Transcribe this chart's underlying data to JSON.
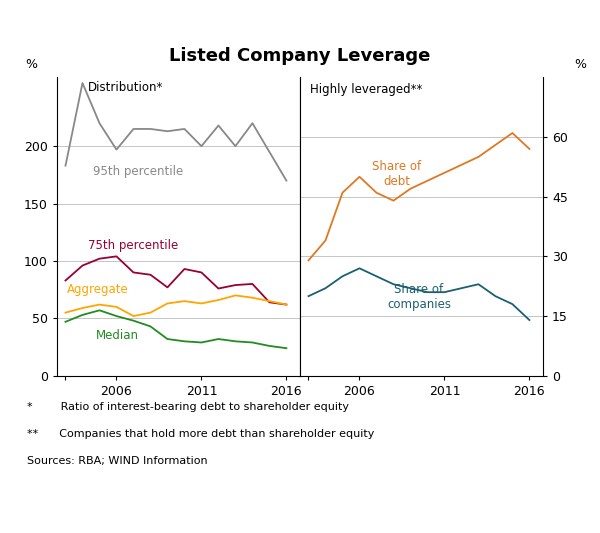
{
  "title": "Listed Company Leverage",
  "left_panel_label": "Distribution*",
  "right_panel_label": "Highly leveraged**",
  "left_ylabel": "%",
  "right_ylabel": "%",
  "left_ylim": [
    0,
    260
  ],
  "right_ylim": [
    0,
    75
  ],
  "left_yticks": [
    0,
    50,
    100,
    150,
    200
  ],
  "right_yticks": [
    0,
    15,
    30,
    45,
    60
  ],
  "footnote1": "*        Ratio of interest-bearing debt to shareholder equity",
  "footnote2": "**      Companies that hold more debt than shareholder equity",
  "footnote3": "Sources: RBA; WIND Information",
  "p95_years": [
    2003,
    2004,
    2005,
    2006,
    2007,
    2008,
    2009,
    2010,
    2011,
    2012,
    2013,
    2014,
    2015,
    2016
  ],
  "p95_vals": [
    183,
    255,
    220,
    197,
    215,
    215,
    213,
    215,
    200,
    218,
    200,
    220,
    195,
    170
  ],
  "p95_color": "#888888",
  "p75_years": [
    2003,
    2004,
    2005,
    2006,
    2007,
    2008,
    2009,
    2010,
    2011,
    2012,
    2013,
    2014,
    2015,
    2016
  ],
  "p75_vals": [
    83,
    96,
    102,
    104,
    90,
    88,
    77,
    93,
    90,
    76,
    79,
    80,
    64,
    62
  ],
  "p75_color": "#990033",
  "agg_years": [
    2003,
    2004,
    2005,
    2006,
    2007,
    2008,
    2009,
    2010,
    2011,
    2012,
    2013,
    2014,
    2015,
    2016
  ],
  "agg_vals": [
    55,
    59,
    62,
    60,
    52,
    55,
    63,
    65,
    63,
    66,
    70,
    68,
    65,
    62
  ],
  "agg_color": "#FFA500",
  "med_years": [
    2003,
    2004,
    2005,
    2006,
    2007,
    2008,
    2009,
    2010,
    2011,
    2012,
    2013,
    2014,
    2015,
    2016
  ],
  "med_vals": [
    47,
    53,
    57,
    52,
    48,
    43,
    32,
    30,
    29,
    32,
    30,
    29,
    26,
    24
  ],
  "med_color": "#228B22",
  "debt_years": [
    2003,
    2004,
    2005,
    2006,
    2007,
    2008,
    2009,
    2010,
    2011,
    2012,
    2013,
    2014,
    2015,
    2016
  ],
  "debt_vals": [
    29,
    34,
    46,
    50,
    46,
    44,
    47,
    49,
    51,
    53,
    55,
    58,
    61,
    57
  ],
  "debt_color": "#E07820",
  "comp_years": [
    2003,
    2004,
    2005,
    2006,
    2007,
    2008,
    2009,
    2010,
    2011,
    2012,
    2013,
    2014,
    2015,
    2016
  ],
  "comp_vals": [
    20,
    22,
    25,
    27,
    25,
    23,
    22,
    21,
    21,
    22,
    23,
    20,
    18,
    14
  ],
  "comp_color": "#1B6070",
  "left_xticks": [
    2003,
    2006,
    2011,
    2016
  ],
  "left_xticklabels": [
    "",
    "2006",
    "2011",
    "2016"
  ],
  "right_xticks": [
    2003,
    2006,
    2011,
    2016
  ],
  "right_xticklabels": [
    "",
    "2006",
    "2011",
    "2016"
  ],
  "xlim_left": [
    2002.5,
    2016.8
  ],
  "xlim_right": [
    2002.5,
    2016.8
  ]
}
